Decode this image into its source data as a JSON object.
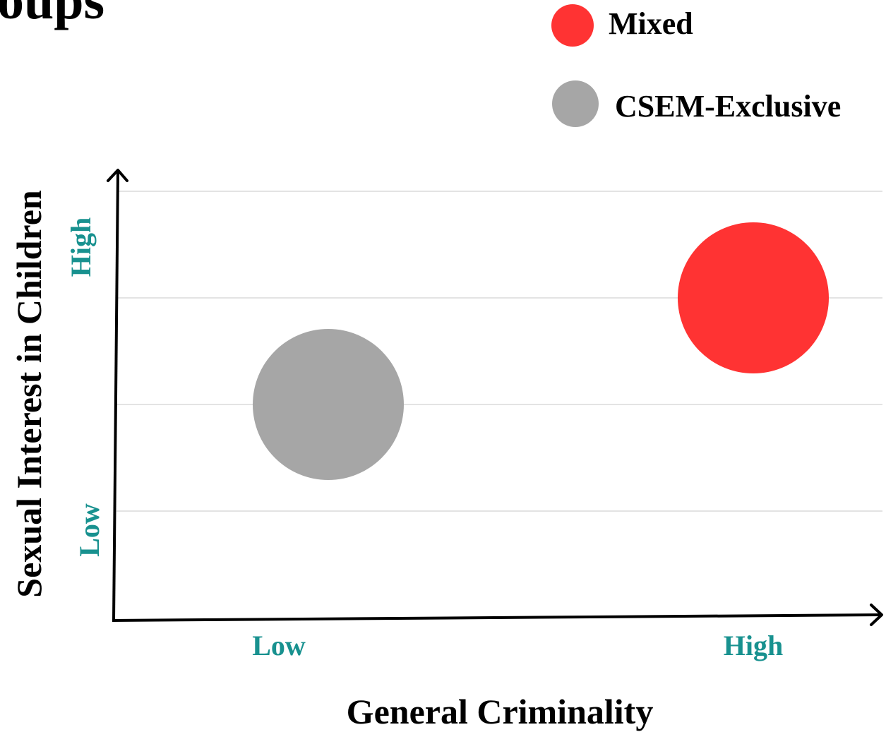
{
  "chart_data": {
    "type": "scatter",
    "title_fragment": "oups",
    "xlabel": "General Criminality",
    "ylabel": "Sexual Interest in Children",
    "x_categories": [
      "Low",
      "High"
    ],
    "y_categories": [
      "Low",
      "High"
    ],
    "grid": true,
    "legend_position": "top-right",
    "series": [
      {
        "name": "Mixed",
        "color": "#ff3333",
        "x": "High",
        "y": "High"
      },
      {
        "name": "CSEM-Exclusive",
        "color": "#a6a6a6",
        "x": "Low",
        "y": "Low"
      }
    ],
    "colors": {
      "axis": "#000000",
      "tick_label": "#18918f",
      "grid": "#e3e3e3"
    }
  }
}
